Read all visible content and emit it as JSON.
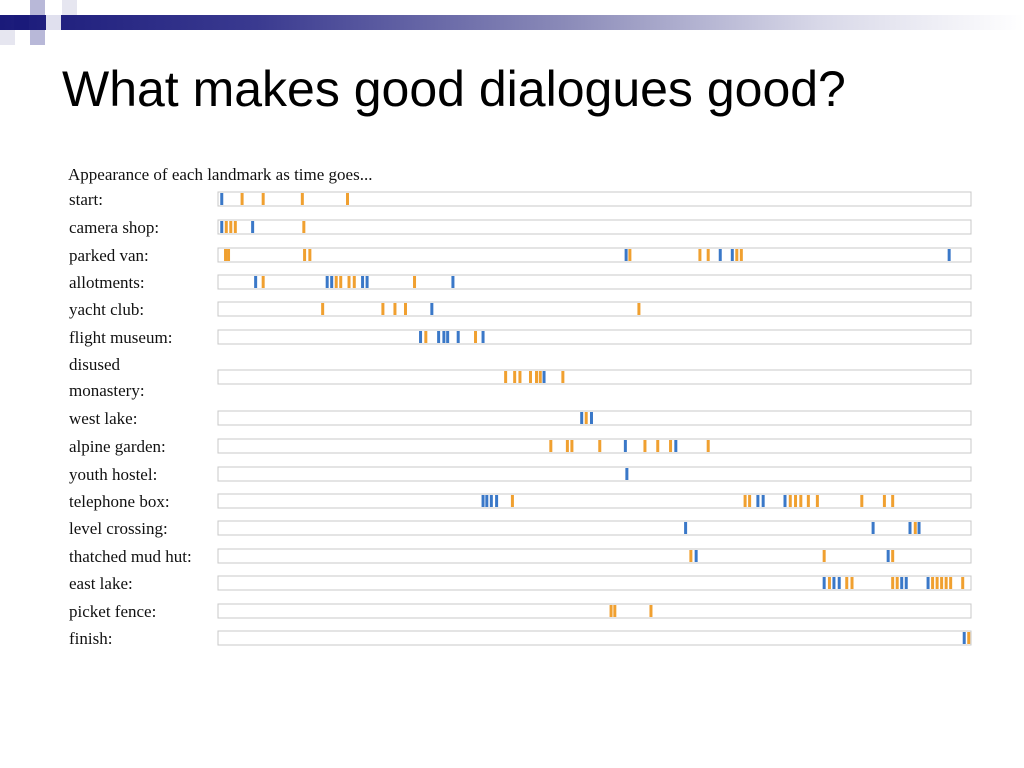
{
  "slide": {
    "title": "What makes good dialogues good?"
  },
  "chart_data": {
    "type": "timeline",
    "title": "Appearance of each landmark as time goes...",
    "xlabel": "",
    "ylabel": "",
    "x_range": [
      0,
      100
    ],
    "legend": "none",
    "grid": false,
    "colors": {
      "orange": "#f0a030",
      "blue": "#3a78c8"
    },
    "rows": [
      {
        "label": "start:",
        "lines": [
          "start:"
        ],
        "events": [
          [
            0.3,
            "b"
          ],
          [
            3,
            "o"
          ],
          [
            5.8,
            "o"
          ],
          [
            11,
            "o"
          ],
          [
            17,
            "o"
          ]
        ]
      },
      {
        "label": "camera shop:",
        "lines": [
          "camera shop:"
        ],
        "events": [
          [
            0.3,
            "b"
          ],
          [
            0.9,
            "o"
          ],
          [
            1.5,
            "o"
          ],
          [
            2.1,
            "o"
          ],
          [
            4.4,
            "b"
          ],
          [
            11.2,
            "o"
          ]
        ]
      },
      {
        "label": "parked van:",
        "lines": [
          "parked van:"
        ],
        "events": [
          [
            0.8,
            "o"
          ],
          [
            1.2,
            "o"
          ],
          [
            11.3,
            "o"
          ],
          [
            12,
            "o"
          ],
          [
            54,
            "b"
          ],
          [
            54.5,
            "o"
          ],
          [
            63.8,
            "o"
          ],
          [
            64.9,
            "o"
          ],
          [
            66.5,
            "b"
          ],
          [
            68.1,
            "b"
          ],
          [
            68.7,
            "o"
          ],
          [
            69.3,
            "o"
          ],
          [
            96.9,
            "b"
          ]
        ]
      },
      {
        "label": "allotments:",
        "lines": [
          "allotments:"
        ],
        "events": [
          [
            4.8,
            "b"
          ],
          [
            5.8,
            "o"
          ],
          [
            14.3,
            "b"
          ],
          [
            14.9,
            "b"
          ],
          [
            15.5,
            "o"
          ],
          [
            16.1,
            "o"
          ],
          [
            17.2,
            "o"
          ],
          [
            17.9,
            "o"
          ],
          [
            19,
            "b"
          ],
          [
            19.6,
            "b"
          ],
          [
            25.9,
            "o"
          ],
          [
            31,
            "b"
          ]
        ]
      },
      {
        "label": "yacht club:",
        "lines": [
          "yacht club:"
        ],
        "events": [
          [
            13.7,
            "o"
          ],
          [
            21.7,
            "o"
          ],
          [
            23.3,
            "o"
          ],
          [
            24.7,
            "o"
          ],
          [
            28.2,
            "b"
          ],
          [
            55.7,
            "o"
          ]
        ]
      },
      {
        "label": "flight museum:",
        "lines": [
          "flight museum:"
        ],
        "events": [
          [
            26.7,
            "b"
          ],
          [
            27.4,
            "o"
          ],
          [
            29.1,
            "b"
          ],
          [
            29.8,
            "b"
          ],
          [
            30.3,
            "b"
          ],
          [
            31.7,
            "b"
          ],
          [
            34,
            "o"
          ],
          [
            35,
            "b"
          ]
        ]
      },
      {
        "label": "disused monastery:",
        "lines": [
          "disused",
          "monastery:"
        ],
        "events": [
          [
            38,
            "o"
          ],
          [
            39.2,
            "o"
          ],
          [
            39.9,
            "o"
          ],
          [
            41.3,
            "o"
          ],
          [
            42.1,
            "o"
          ],
          [
            42.6,
            "o"
          ],
          [
            43.1,
            "b"
          ],
          [
            45.6,
            "o"
          ]
        ]
      },
      {
        "label": "west lake:",
        "lines": [
          "west lake:"
        ],
        "events": [
          [
            48.1,
            "b"
          ],
          [
            48.7,
            "o"
          ],
          [
            49.4,
            "b"
          ]
        ]
      },
      {
        "label": "alpine garden:",
        "lines": [
          "alpine garden:"
        ],
        "events": [
          [
            44,
            "o"
          ],
          [
            46.2,
            "o"
          ],
          [
            46.8,
            "o"
          ],
          [
            50.5,
            "o"
          ],
          [
            53.9,
            "b"
          ],
          [
            56.5,
            "o"
          ],
          [
            58.2,
            "o"
          ],
          [
            59.9,
            "o"
          ],
          [
            60.6,
            "b"
          ],
          [
            64.9,
            "o"
          ]
        ]
      },
      {
        "label": "youth hostel:",
        "lines": [
          "youth hostel:"
        ],
        "events": [
          [
            54.1,
            "b"
          ]
        ]
      },
      {
        "label": "telephone box:",
        "lines": [
          "telephone box:"
        ],
        "events": [
          [
            35,
            "b"
          ],
          [
            35.5,
            "b"
          ],
          [
            36.1,
            "b"
          ],
          [
            36.8,
            "b"
          ],
          [
            38.9,
            "o"
          ],
          [
            69.8,
            "o"
          ],
          [
            70.4,
            "o"
          ],
          [
            71.5,
            "b"
          ],
          [
            72.2,
            "b"
          ],
          [
            75.1,
            "b"
          ],
          [
            75.8,
            "o"
          ],
          [
            76.5,
            "o"
          ],
          [
            77.2,
            "o"
          ],
          [
            78.2,
            "o"
          ],
          [
            79.4,
            "o"
          ],
          [
            85.3,
            "o"
          ],
          [
            88.3,
            "o"
          ],
          [
            89.4,
            "o"
          ]
        ]
      },
      {
        "label": "level crossing:",
        "lines": [
          "level crossing:"
        ],
        "events": [
          [
            61.9,
            "b"
          ],
          [
            86.8,
            "b"
          ],
          [
            91.7,
            "b"
          ],
          [
            92.4,
            "o"
          ],
          [
            92.9,
            "b"
          ]
        ]
      },
      {
        "label": "thatched mud hut:",
        "lines": [
          "thatched mud hut:"
        ],
        "events": [
          [
            62.6,
            "o"
          ],
          [
            63.3,
            "b"
          ],
          [
            80.3,
            "o"
          ],
          [
            88.8,
            "b"
          ],
          [
            89.4,
            "o"
          ]
        ]
      },
      {
        "label": "east lake:",
        "lines": [
          "east lake:"
        ],
        "events": [
          [
            80.3,
            "b"
          ],
          [
            81,
            "o"
          ],
          [
            81.6,
            "b"
          ],
          [
            82.3,
            "b"
          ],
          [
            83.3,
            "o"
          ],
          [
            84,
            "o"
          ],
          [
            89.4,
            "o"
          ],
          [
            90,
            "o"
          ],
          [
            90.6,
            "b"
          ],
          [
            91.2,
            "b"
          ],
          [
            94.1,
            "b"
          ],
          [
            94.7,
            "o"
          ],
          [
            95.3,
            "o"
          ],
          [
            95.9,
            "o"
          ],
          [
            96.5,
            "o"
          ],
          [
            97.1,
            "o"
          ],
          [
            98.7,
            "o"
          ]
        ]
      },
      {
        "label": "picket fence:",
        "lines": [
          "picket fence:"
        ],
        "events": [
          [
            52,
            "o"
          ],
          [
            52.5,
            "o"
          ],
          [
            57.3,
            "o"
          ]
        ]
      },
      {
        "label": "finish:",
        "lines": [
          "finish:"
        ],
        "events": [
          [
            98.9,
            "b"
          ],
          [
            99.5,
            "o"
          ]
        ]
      }
    ]
  }
}
